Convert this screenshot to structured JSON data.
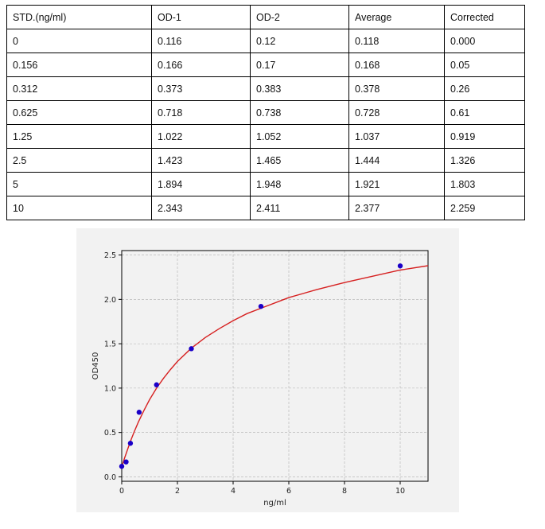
{
  "table": {
    "headers": [
      "STD.(ng/ml)",
      "OD-1",
      "OD-2",
      "Average",
      "Corrected"
    ],
    "rows": [
      [
        "0",
        "0.116",
        "0.12",
        "0.118",
        "0.000"
      ],
      [
        "0.156",
        "0.166",
        "0.17",
        "0.168",
        "0.05"
      ],
      [
        "0.312",
        "0.373",
        "0.383",
        "0.378",
        "0.26"
      ],
      [
        "0.625",
        "0.718",
        "0.738",
        "0.728",
        "0.61"
      ],
      [
        "1.25",
        "1.022",
        "1.052",
        "1.037",
        "0.919"
      ],
      [
        "2.5",
        "1.423",
        "1.465",
        "1.444",
        "1.326"
      ],
      [
        "5",
        "1.894",
        "1.948",
        "1.921",
        "1.803"
      ],
      [
        "10",
        "2.343",
        "2.411",
        "2.377",
        "2.259"
      ]
    ]
  },
  "chart_data": {
    "type": "scatter",
    "title": "",
    "xlabel": "ng/ml",
    "ylabel": "OD450",
    "xlim": [
      0,
      11
    ],
    "ylim": [
      -0.05,
      2.55
    ],
    "xticks": [
      0,
      2,
      4,
      6,
      8,
      10
    ],
    "xtick_labels": [
      "0",
      "2",
      "4",
      "6",
      "8",
      "10"
    ],
    "yticks": [
      0.0,
      0.5,
      1.0,
      1.5,
      2.0,
      2.5
    ],
    "ytick_labels": [
      "0.0",
      "0.5",
      "1.0",
      "1.5",
      "2.0",
      "2.5"
    ],
    "grid": true,
    "series": [
      {
        "kind": "points",
        "color": "#1a00c8",
        "x": [
          0,
          0.156,
          0.312,
          0.625,
          1.25,
          2.5,
          5,
          10
        ],
        "y": [
          0.118,
          0.168,
          0.378,
          0.728,
          1.037,
          1.444,
          1.921,
          2.377
        ]
      },
      {
        "kind": "fitted-curve",
        "color": "#d62020",
        "x": [
          0,
          0.1,
          0.2,
          0.3,
          0.45,
          0.6,
          0.8,
          1.0,
          1.25,
          1.5,
          1.75,
          2.0,
          2.5,
          3.0,
          3.5,
          4.0,
          4.5,
          5.0,
          6.0,
          7.0,
          8.0,
          9.0,
          10.0,
          11.0
        ],
        "y": [
          0.11,
          0.21,
          0.3,
          0.39,
          0.51,
          0.62,
          0.75,
          0.87,
          1.0,
          1.11,
          1.21,
          1.3,
          1.45,
          1.57,
          1.67,
          1.76,
          1.84,
          1.9,
          2.02,
          2.11,
          2.19,
          2.26,
          2.33,
          2.38
        ]
      }
    ]
  }
}
